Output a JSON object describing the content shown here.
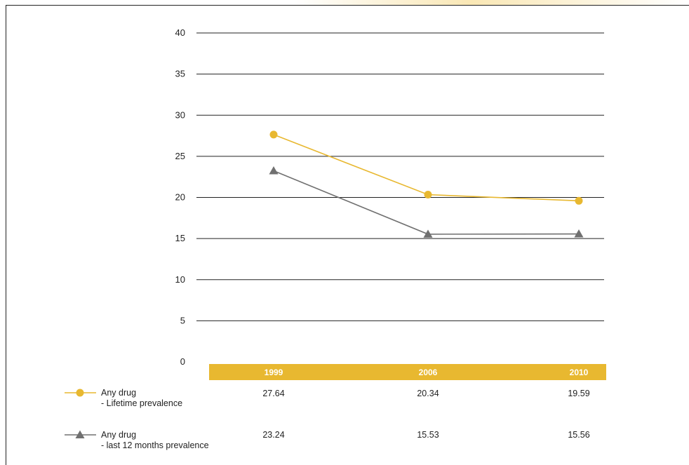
{
  "chart_data": {
    "type": "line",
    "categories": [
      "1999",
      "2006",
      "2010"
    ],
    "ylim": [
      0,
      40
    ],
    "yticks": [
      0,
      5,
      10,
      15,
      20,
      25,
      30,
      35,
      40
    ],
    "grid": true,
    "legend_placement": "bottom-left",
    "series": [
      {
        "name_line1": "Any drug",
        "name_line2": "- Lifetime prevalence",
        "values": [
          27.64,
          20.34,
          19.59
        ],
        "value_labels": [
          "27.64",
          "20.34",
          "19.59"
        ],
        "color": "#e8b830",
        "marker": "circle"
      },
      {
        "name_line1": "Any drug",
        "name_line2": "- last 12 months prevalence",
        "values": [
          23.24,
          15.53,
          15.56
        ],
        "value_labels": [
          "23.24",
          "15.53",
          "15.56"
        ],
        "color": "#707070",
        "marker": "triangle"
      }
    ],
    "category_band_color": "#e8b830"
  }
}
